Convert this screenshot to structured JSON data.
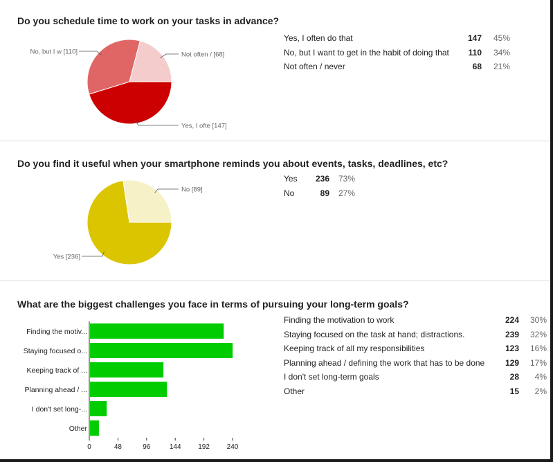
{
  "q1": {
    "title": "Do you schedule time to work on your tasks in advance?",
    "chart_data": {
      "type": "pie",
      "slices": [
        {
          "label": "Yes, I often do that",
          "value": 147,
          "callout": "Yes, I ofte [147]",
          "color": "#cc0000"
        },
        {
          "label": "No, but I want to get in the habit of doing that",
          "value": 110,
          "callout": "No, but I w [110]",
          "color": "#e06666"
        },
        {
          "label": "Not often / never",
          "value": 68,
          "callout": "Not often /  [68]",
          "color": "#f4cccc"
        }
      ]
    },
    "rows": [
      {
        "label": "Yes, I often do that",
        "count": "147",
        "pct": "45%"
      },
      {
        "label": "No, but I want to get in the habit of doing that",
        "count": "110",
        "pct": "34%"
      },
      {
        "label": "Not often / never",
        "count": "68",
        "pct": "21%"
      }
    ]
  },
  "q2": {
    "title": "Do you find it useful when your smartphone reminds you about events, tasks, deadlines, etc?",
    "chart_data": {
      "type": "pie",
      "slices": [
        {
          "label": "Yes",
          "value": 236,
          "callout": "Yes [236]",
          "color": "#dbc400"
        },
        {
          "label": "No",
          "value": 89,
          "callout": "No [89]",
          "color": "#f7f1c8"
        }
      ]
    },
    "rows": [
      {
        "label": "Yes",
        "count": "236",
        "pct": "73%"
      },
      {
        "label": "No",
        "count": "89",
        "pct": "27%"
      }
    ]
  },
  "q3": {
    "title": "What are the biggest challenges you face in terms of pursuing your long-term goals?",
    "chart_data": {
      "type": "bar",
      "orientation": "horizontal",
      "categories": [
        "Finding the motiv...",
        "Staying focused o...",
        "Keeping track of ...",
        "Planning ahead / ...",
        "I don't set long-...",
        "Other"
      ],
      "values": [
        224,
        239,
        123,
        129,
        28,
        15
      ],
      "xlim": [
        0,
        240
      ],
      "xticks": [
        "0",
        "48",
        "96",
        "144",
        "192",
        "240"
      ],
      "color": "#00cc00"
    },
    "rows": [
      {
        "label": "Finding the motivation to work",
        "count": "224",
        "pct": "30%"
      },
      {
        "label": "Staying focused on the task at hand; distractions.",
        "count": "239",
        "pct": "32%"
      },
      {
        "label": "Keeping track of all my responsibilities",
        "count": "123",
        "pct": "16%"
      },
      {
        "label": "Planning ahead / defining the work that has to be done",
        "count": "129",
        "pct": "17%"
      },
      {
        "label": "I don't set long-term goals",
        "count": "28",
        "pct": "4%"
      },
      {
        "label": "Other",
        "count": "15",
        "pct": "2%"
      }
    ]
  }
}
